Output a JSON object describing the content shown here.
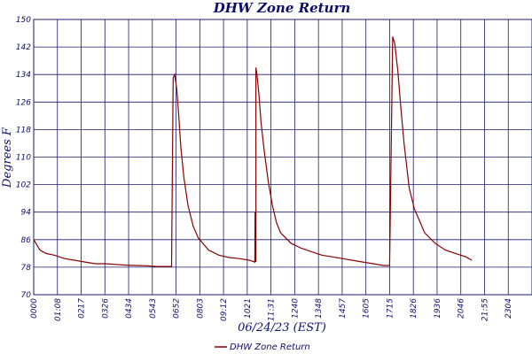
{
  "chart_data": {
    "type": "line",
    "title": "DHW Zone Return",
    "xlabel": "06/24/23 (EST)",
    "ylabel": "Degrees F",
    "ylim": [
      70,
      150
    ],
    "yticks": [
      70,
      78,
      86,
      94,
      102,
      110,
      118,
      126,
      134,
      142,
      150
    ],
    "xticks": [
      "0000",
      "01:08",
      "0217",
      "0326",
      "0434",
      "0543",
      "0652",
      "0803",
      "09:12",
      "1021",
      "11:31",
      "1240",
      "1348",
      "1457",
      "1605",
      "1715",
      "1826",
      "1936",
      "2046",
      "21:55",
      "2304"
    ],
    "grid": true,
    "legend": "bottom-center",
    "colors": {
      "series": "#8b0000",
      "grid": "#1a1a6e",
      "text": "#0d0d6b"
    },
    "series": [
      {
        "name": "DHW Zone Return",
        "x": [
          0,
          0.3,
          0.6,
          1,
          1.5,
          2,
          2.5,
          3,
          3.5,
          4,
          4.5,
          5,
          5.5,
          6,
          6.5,
          6.7,
          6.78,
          6.85,
          6.95,
          7.05,
          7.15,
          7.3,
          7.5,
          7.75,
          8,
          8.5,
          9,
          9.5,
          10,
          10.5,
          10.75,
          10.76,
          10.8,
          10.8,
          10.85,
          10.95,
          11.05,
          11.2,
          11.4,
          11.6,
          11.8,
          12,
          12.5,
          13,
          13.5,
          14,
          14.5,
          15,
          15.5,
          16,
          16.5,
          17,
          17.2,
          17.3,
          17.45,
          17.55,
          17.7,
          17.85,
          18,
          18.25,
          18.5,
          19,
          19.5,
          20,
          20.5,
          21,
          21.3
        ],
        "values": [
          86,
          83,
          82,
          81.5,
          80.5,
          80,
          79.5,
          79,
          79,
          78.8,
          78.6,
          78.5,
          78.4,
          78.2,
          78.2,
          78.2,
          133,
          134,
          130,
          122,
          113,
          104,
          96,
          90,
          86.5,
          83,
          81.5,
          80.8,
          80.5,
          80,
          79.5,
          94,
          79.5,
          136,
          134,
          128,
          120,
          112,
          103,
          96,
          91,
          88,
          85,
          83.5,
          82.5,
          81.5,
          81,
          80.5,
          80,
          79.5,
          79,
          78.5,
          78.5,
          78.5,
          145,
          143,
          135,
          124,
          114,
          101,
          95,
          88,
          85,
          83,
          82,
          81,
          80
        ]
      }
    ]
  }
}
